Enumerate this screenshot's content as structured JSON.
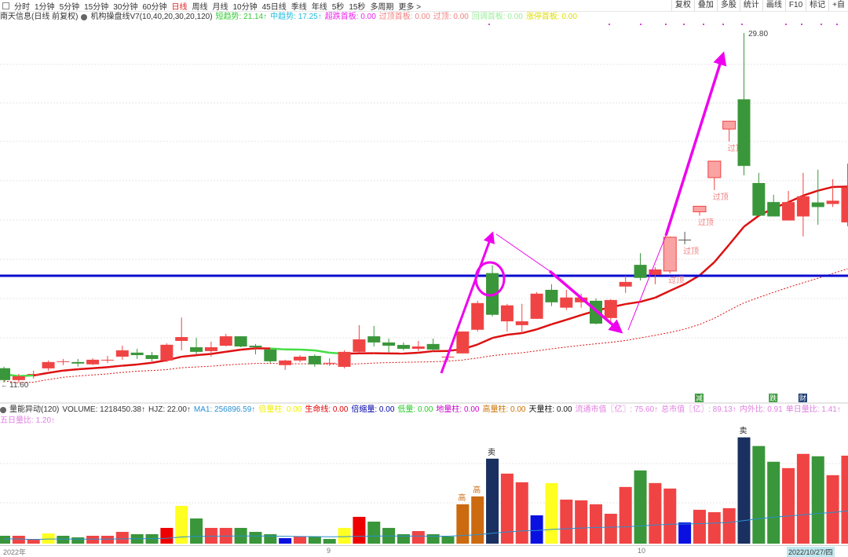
{
  "toolbar": {
    "icon": "panel-toggle-icon",
    "periods": [
      "分时",
      "1分钟",
      "5分钟",
      "15分钟",
      "30分钟",
      "60分钟",
      "日线",
      "周线",
      "月线",
      "10分钟",
      "45日线",
      "季线",
      "年线",
      "5秒",
      "15秒",
      "多周期",
      "更多 >"
    ],
    "active": "日线",
    "right": [
      "复权",
      "叠加",
      "多股",
      "统计",
      "画线",
      "F10",
      "标记",
      "+自"
    ]
  },
  "main_legend": {
    "title": "南天信息(日线 前复权)",
    "indicator": "机构操盘线V7(10,40,20,30,20,120)",
    "items": [
      {
        "label": "短趋势: 21.14↑",
        "color": "#33cc33"
      },
      {
        "label": "中趋势: 17.25↑",
        "color": "#22bbdd"
      },
      {
        "label": "超跌首板: 0.00",
        "color": "#ee22ee"
      },
      {
        "label": "过顶首板: 0.00",
        "color": "#f08080"
      },
      {
        "label": "过顶: 0.00",
        "color": "#f08080"
      },
      {
        "label": "回调首板: 0.00",
        "color": "#99ee99"
      },
      {
        "label": "涨停首板: 0.00",
        "color": "#dddd00"
      }
    ]
  },
  "price_labels": {
    "low": "11.60",
    "high": "29.80"
  },
  "annotation_text": "过顶",
  "vol_legend": {
    "items": [
      {
        "label": "量能异动(120)",
        "color": "#333"
      },
      {
        "label": "VOLUME: 1218450.38↑",
        "color": "#333"
      },
      {
        "label": "HJZ: 22.00↑",
        "color": "#333"
      },
      {
        "label": "MA1: 256896.59↑",
        "color": "#2a8fd0"
      },
      {
        "label": "倍量柱: 0.00",
        "color": "#eeee00"
      },
      {
        "label": "生命线: 0.00",
        "color": "#e00000"
      },
      {
        "label": "倍缩量: 0.00",
        "color": "#0000aa"
      },
      {
        "label": "低量: 0.00",
        "color": "#22cc22"
      },
      {
        "label": "地量柱: 0.00",
        "color": "#cc00cc"
      },
      {
        "label": "高量柱: 0.00",
        "color": "#cc7000"
      },
      {
        "label": "天量柱: 0.00",
        "color": "#111"
      },
      {
        "label": "流通市值〖亿〗: 75.60↑",
        "color": "#e080e0"
      },
      {
        "label": "总市值〖亿〗: 89.13↑",
        "color": "#e080e0"
      },
      {
        "label": "内外比: 0.91",
        "color": "#e080e0"
      },
      {
        "label": "单日量比: 1.41↑",
        "color": "#e080e0"
      },
      {
        "label": "五日量比: 1.20↑",
        "color": "#e080e0"
      }
    ]
  },
  "signal_marks": [
    {
      "text": "减",
      "color": "#3a9a3a",
      "bar": 47
    },
    {
      "text": "跌",
      "color": "#3a9a3a",
      "bar": 52
    },
    {
      "text": "财",
      "color": "#1a3a70",
      "bar": 54
    }
  ],
  "volume_labels": [
    {
      "text": "高",
      "bar": 31,
      "color": "#cc6a10"
    },
    {
      "text": "高",
      "bar": 32,
      "color": "#cc6a10"
    },
    {
      "text": "卖",
      "bar": 33,
      "color": "#222"
    },
    {
      "text": "卖",
      "bar": 50,
      "color": "#222"
    }
  ],
  "axis": {
    "labels": [
      "2022年",
      "9",
      "10"
    ],
    "current_date": "2022/10/27/四"
  },
  "colors": {
    "up": "#f04444",
    "down": "#3a963a",
    "over": "#f9a3a3",
    "ma": "#dd1111",
    "arrow": "#ee00ee",
    "hline": "#0a0ad0"
  },
  "hline_price": 17.16,
  "candles": [
    [
      12.35,
      11.73,
      12.43,
      11.6,
      "d"
    ],
    [
      11.73,
      11.93,
      12.05,
      11.6,
      "u"
    ],
    [
      12.05,
      12.05,
      12.22,
      11.81,
      "u"
    ],
    [
      12.34,
      12.67,
      12.75,
      12.22,
      "u"
    ],
    [
      12.7,
      12.71,
      12.83,
      12.51,
      "u"
    ],
    [
      12.67,
      12.59,
      12.83,
      12.43,
      "d"
    ],
    [
      12.55,
      12.79,
      12.87,
      12.51,
      "u"
    ],
    [
      12.79,
      12.79,
      12.99,
      12.63,
      "u"
    ],
    [
      12.95,
      13.28,
      13.52,
      12.79,
      "u"
    ],
    [
      13.16,
      13.03,
      13.36,
      12.83,
      "d"
    ],
    [
      13.03,
      12.83,
      13.2,
      12.71,
      "d"
    ],
    [
      12.75,
      13.57,
      13.65,
      12.67,
      "u"
    ],
    [
      13.77,
      13.97,
      14.99,
      13.28,
      "u"
    ],
    [
      13.44,
      13.2,
      13.93,
      13.07,
      "d"
    ],
    [
      13.24,
      13.44,
      13.73,
      12.95,
      "u"
    ],
    [
      13.52,
      14.01,
      14.14,
      13.48,
      "u"
    ],
    [
      14.01,
      13.48,
      14.01,
      13.44,
      "d"
    ],
    [
      13.52,
      13.44,
      13.61,
      13.07,
      "d"
    ],
    [
      13.32,
      12.71,
      13.32,
      12.63,
      "d"
    ],
    [
      12.51,
      12.75,
      12.79,
      12.26,
      "u"
    ],
    [
      12.75,
      12.95,
      13.03,
      12.67,
      "u"
    ],
    [
      12.99,
      12.55,
      13.07,
      12.42,
      "d"
    ],
    [
      12.63,
      12.63,
      12.87,
      12.47,
      "u"
    ],
    [
      12.42,
      13.2,
      13.28,
      12.34,
      "u"
    ],
    [
      13.2,
      13.85,
      14.59,
      13.16,
      "u"
    ],
    [
      14.01,
      13.69,
      14.55,
      13.48,
      "d"
    ],
    [
      13.69,
      13.52,
      13.89,
      13.16,
      "d"
    ],
    [
      13.56,
      13.36,
      13.69,
      13.28,
      "d"
    ],
    [
      13.36,
      13.48,
      13.77,
      13.24,
      "u"
    ],
    [
      13.61,
      13.32,
      13.89,
      13.24,
      "d"
    ],
    [
      12.95,
      12.95,
      13.16,
      12.75,
      "u"
    ],
    [
      13.12,
      14.26,
      14.26,
      13.12,
      "u"
    ],
    [
      14.35,
      15.74,
      15.86,
      14.26,
      "u"
    ],
    [
      17.3,
      15.13,
      17.71,
      15.05,
      "d"
    ],
    [
      14.79,
      15.62,
      15.7,
      14.26,
      "u"
    ],
    [
      14.59,
      14.79,
      15.7,
      14.18,
      "u"
    ],
    [
      14.92,
      16.23,
      16.31,
      14.92,
      "u"
    ],
    [
      16.43,
      15.78,
      16.72,
      15.58,
      "d"
    ],
    [
      15.5,
      16.03,
      16.43,
      15.38,
      "u"
    ],
    [
      15.78,
      16.03,
      16.23,
      15.5,
      "u"
    ],
    [
      15.86,
      14.67,
      15.98,
      14.63,
      "d"
    ],
    [
      14.96,
      15.9,
      15.94,
      14.63,
      "u"
    ],
    [
      16.6,
      16.84,
      17.16,
      16.27,
      "u"
    ],
    [
      17.05,
      17.73,
      18.34,
      16.92,
      "d"
    ],
    [
      17.21,
      17.49,
      17.61,
      16.72,
      "u"
    ],
    [
      17.41,
      19.17,
      19.21,
      17.28,
      "o"
    ],
    [
      19.04,
      19.04,
      19.45,
      18.8,
      "x"
    ],
    [
      20.49,
      20.78,
      20.78,
      20.29,
      "o"
    ],
    [
      22.27,
      23.13,
      23.13,
      21.62,
      "o"
    ],
    [
      24.8,
      25.21,
      25.21,
      24.15,
      "o"
    ],
    [
      26.35,
      22.88,
      29.8,
      22.39,
      "d"
    ],
    [
      21.99,
      20.29,
      22.52,
      20.29,
      "d"
    ],
    [
      21.0,
      20.25,
      21.38,
      20.25,
      "d"
    ],
    [
      20.04,
      21.0,
      21.58,
      20.04,
      "u"
    ],
    [
      20.25,
      21.3,
      22.52,
      19.21,
      "u"
    ],
    [
      20.98,
      20.74,
      22.68,
      19.82,
      "d"
    ],
    [
      20.9,
      21.07,
      22.19,
      20.74,
      "u"
    ],
    [
      19.94,
      21.75,
      23.0,
      19.74,
      "u"
    ]
  ],
  "volumes": [
    [
      109000,
      "g"
    ],
    [
      109000,
      "r"
    ],
    [
      65000,
      "r"
    ],
    [
      142000,
      "y"
    ],
    [
      109000,
      "g"
    ],
    [
      87000,
      "g"
    ],
    [
      109000,
      "r"
    ],
    [
      109000,
      "r"
    ],
    [
      163000,
      "r"
    ],
    [
      131000,
      "g"
    ],
    [
      131000,
      "g"
    ],
    [
      218000,
      "R"
    ],
    [
      523000,
      "y"
    ],
    [
      349000,
      "g"
    ],
    [
      218000,
      "r"
    ],
    [
      218000,
      "r"
    ],
    [
      218000,
      "g"
    ],
    [
      163000,
      "g"
    ],
    [
      131000,
      "g"
    ],
    [
      76000,
      "b"
    ],
    [
      98000,
      "r"
    ],
    [
      98000,
      "g"
    ],
    [
      65000,
      "g"
    ],
    [
      218000,
      "y"
    ],
    [
      371000,
      "R"
    ],
    [
      305000,
      "g"
    ],
    [
      218000,
      "g"
    ],
    [
      131000,
      "g"
    ],
    [
      174000,
      "r"
    ],
    [
      131000,
      "g"
    ],
    [
      98000,
      "g"
    ],
    [
      545000,
      "o"
    ],
    [
      654000,
      "o"
    ],
    [
      1177000,
      "n"
    ],
    [
      970000,
      "r"
    ],
    [
      850000,
      "r"
    ],
    [
      392000,
      "b"
    ],
    [
      839000,
      "y"
    ],
    [
      610000,
      "r"
    ],
    [
      600000,
      "r"
    ],
    [
      545000,
      "r"
    ],
    [
      414000,
      "r"
    ],
    [
      785000,
      "r"
    ],
    [
      1014000,
      "g"
    ],
    [
      839000,
      "r"
    ],
    [
      763000,
      "r"
    ],
    [
      294000,
      "b"
    ],
    [
      469000,
      "r"
    ],
    [
      436000,
      "r"
    ],
    [
      491000,
      "r"
    ],
    [
      1472000,
      "n"
    ],
    [
      1352000,
      "g"
    ],
    [
      1134000,
      "g"
    ],
    [
      1046000,
      "r"
    ],
    [
      1243000,
      "r"
    ],
    [
      1210000,
      "g"
    ],
    [
      948000,
      "r"
    ],
    [
      1218450,
      "r"
    ]
  ]
}
